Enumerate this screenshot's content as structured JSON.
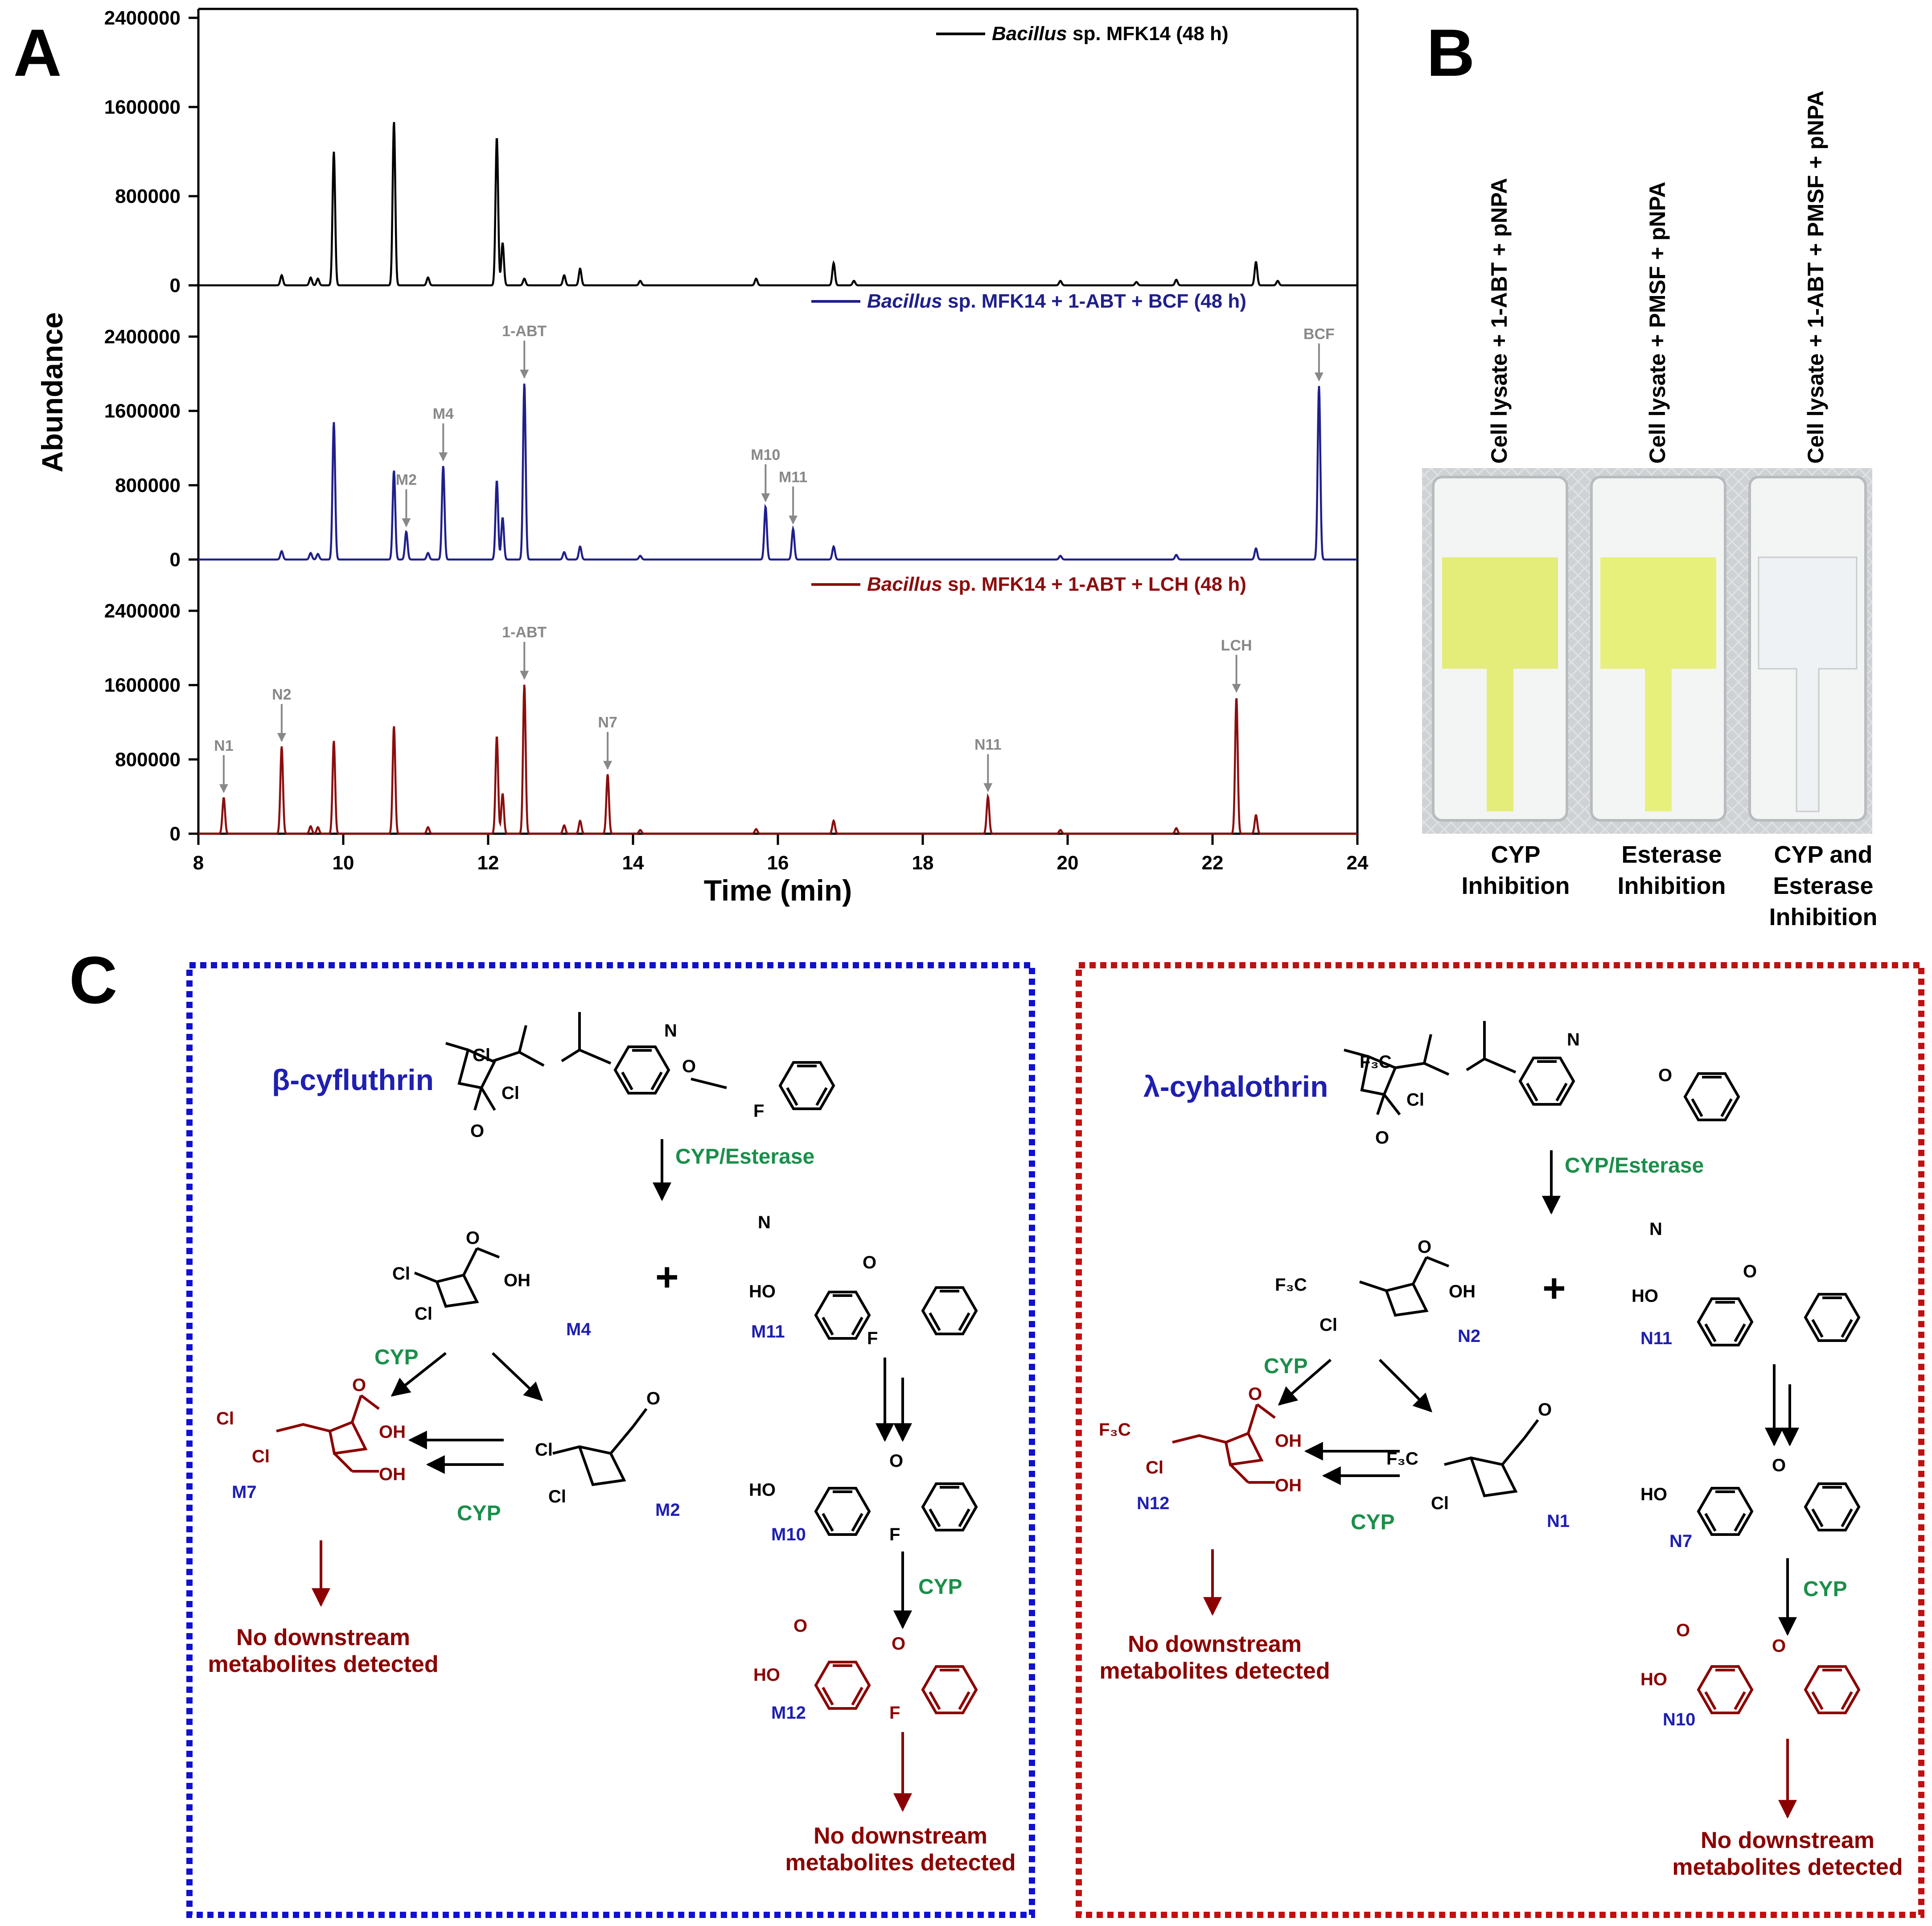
{
  "figure": {
    "panels": {
      "a": "A",
      "b": "B",
      "c": "C"
    },
    "panel_a": {
      "ylabel": "Abundance",
      "xlabel": "Time (min)",
      "x_ticks": [
        "8",
        "10",
        "12",
        "14",
        "16",
        "18",
        "20",
        "22",
        "24"
      ],
      "y_ticks": [
        "0",
        "800000",
        "1600000",
        "2400000"
      ]
    },
    "panel_b": {
      "tubes": [
        {
          "label": "Cell lysate + 1-ABT + pNPA",
          "caption": [
            "CYP",
            "Inhibition"
          ],
          "color": "#e4ec7a"
        },
        {
          "label": "Cell lysate + PMSF + pNPA",
          "caption": [
            "Esterase",
            "Inhibition"
          ],
          "color": "#e8f07c"
        },
        {
          "label": "Cell lysate + 1-ABT + PMSF + pNPA",
          "caption": [
            "CYP and",
            "Esterase",
            "Inhibition"
          ],
          "color": "#eef2f4"
        }
      ]
    },
    "panel_c": {
      "left": {
        "compound": "β-cyfluthrin",
        "step1": "CYP/Esterase",
        "acid": "M4",
        "alcohol": "M11",
        "aldehyde": "M2",
        "hydroxy_acid": "M7",
        "benzyl_alcohol": "M10",
        "benzoic_acid": "M12",
        "cyp": "CYP",
        "no_downstream": [
          "No downstream",
          "metabolites detected"
        ]
      },
      "right": {
        "compound": "λ-cyhalothrin",
        "step1": "CYP/Esterase",
        "acid": "N2",
        "alcohol": "N11",
        "aldehyde": "N1",
        "hydroxy_acid": "N12",
        "benzyl_alcohol": "N7",
        "benzoic_acid": "N10",
        "cyp": "CYP",
        "no_downstream": [
          "No downstream",
          "metabolites detected"
        ]
      }
    }
  },
  "chart_data": {
    "type": "line",
    "xlabel": "Time (min)",
    "ylabel": "Abundance",
    "xlim": [
      8,
      24
    ],
    "ylim": [
      0,
      2400000
    ],
    "series": [
      {
        "name": "Bacillus sp. MFK14 (48 h)",
        "name_italic": "Bacillus",
        "name_rest": " sp. MFK14 (48 h)",
        "color": "#000000",
        "peaks": [
          [
            9.15,
            90000
          ],
          [
            9.55,
            70000
          ],
          [
            9.65,
            60000
          ],
          [
            9.87,
            1200000
          ],
          [
            10.7,
            1470000
          ],
          [
            11.17,
            70000
          ],
          [
            12.12,
            1330000
          ],
          [
            12.2,
            380000
          ],
          [
            12.5,
            60000
          ],
          [
            13.05,
            90000
          ],
          [
            13.27,
            150000
          ],
          [
            14.1,
            40000
          ],
          [
            15.7,
            60000
          ],
          [
            16.77,
            200000
          ],
          [
            17.05,
            40000
          ],
          [
            19.9,
            40000
          ],
          [
            20.95,
            30000
          ],
          [
            21.5,
            50000
          ],
          [
            22.6,
            210000
          ],
          [
            22.9,
            40000
          ]
        ],
        "annotations": []
      },
      {
        "name": "Bacillus sp. MFK14 + 1-ABT + BCF (48 h)",
        "name_italic": "Bacillus",
        "name_rest": " sp. MFK14 + 1-ABT + BCF (48 h)",
        "color": "#1f1f8c",
        "peaks": [
          [
            9.15,
            90000
          ],
          [
            9.55,
            70000
          ],
          [
            9.65,
            60000
          ],
          [
            9.87,
            1480000
          ],
          [
            10.7,
            960000
          ],
          [
            10.87,
            300000
          ],
          [
            11.17,
            70000
          ],
          [
            11.38,
            1010000
          ],
          [
            12.12,
            850000
          ],
          [
            12.2,
            450000
          ],
          [
            12.5,
            1900000
          ],
          [
            13.05,
            80000
          ],
          [
            13.27,
            140000
          ],
          [
            14.1,
            40000
          ],
          [
            15.83,
            570000
          ],
          [
            16.21,
            330000
          ],
          [
            16.77,
            140000
          ],
          [
            19.9,
            40000
          ],
          [
            21.5,
            50000
          ],
          [
            22.6,
            120000
          ],
          [
            23.47,
            1870000
          ]
        ],
        "annotations": [
          {
            "label": "M2",
            "x": 10.87,
            "y": 300000
          },
          {
            "label": "M4",
            "x": 11.38,
            "y": 1010000
          },
          {
            "label": "1-ABT",
            "x": 12.5,
            "y": 1900000
          },
          {
            "label": "M10",
            "x": 15.83,
            "y": 570000
          },
          {
            "label": "M11",
            "x": 16.21,
            "y": 330000
          },
          {
            "label": "BCF",
            "x": 23.47,
            "y": 1870000
          }
        ]
      },
      {
        "name": "Bacillus sp. MFK14 + 1-ABT + LCH (48 h)",
        "name_italic": "Bacillus",
        "name_rest": " sp. MFK14 + 1-ABT + LCH (48 h)",
        "color": "#8b0e0e",
        "peaks": [
          [
            8.35,
            390000
          ],
          [
            9.15,
            940000
          ],
          [
            9.55,
            80000
          ],
          [
            9.65,
            70000
          ],
          [
            9.87,
            1000000
          ],
          [
            10.7,
            1160000
          ],
          [
            11.17,
            70000
          ],
          [
            12.12,
            1050000
          ],
          [
            12.2,
            430000
          ],
          [
            12.5,
            1610000
          ],
          [
            13.05,
            90000
          ],
          [
            13.27,
            140000
          ],
          [
            13.65,
            640000
          ],
          [
            14.1,
            40000
          ],
          [
            15.7,
            50000
          ],
          [
            16.77,
            140000
          ],
          [
            18.9,
            400000
          ],
          [
            19.9,
            40000
          ],
          [
            21.5,
            60000
          ],
          [
            22.33,
            1470000
          ],
          [
            22.6,
            200000
          ]
        ],
        "annotations": [
          {
            "label": "N1",
            "x": 8.35,
            "y": 390000
          },
          {
            "label": "N2",
            "x": 9.15,
            "y": 940000
          },
          {
            "label": "1-ABT",
            "x": 12.5,
            "y": 1610000
          },
          {
            "label": "N7",
            "x": 13.65,
            "y": 640000
          },
          {
            "label": "N11",
            "x": 18.9,
            "y": 400000
          },
          {
            "label": "LCH",
            "x": 22.33,
            "y": 1470000
          }
        ]
      }
    ]
  }
}
